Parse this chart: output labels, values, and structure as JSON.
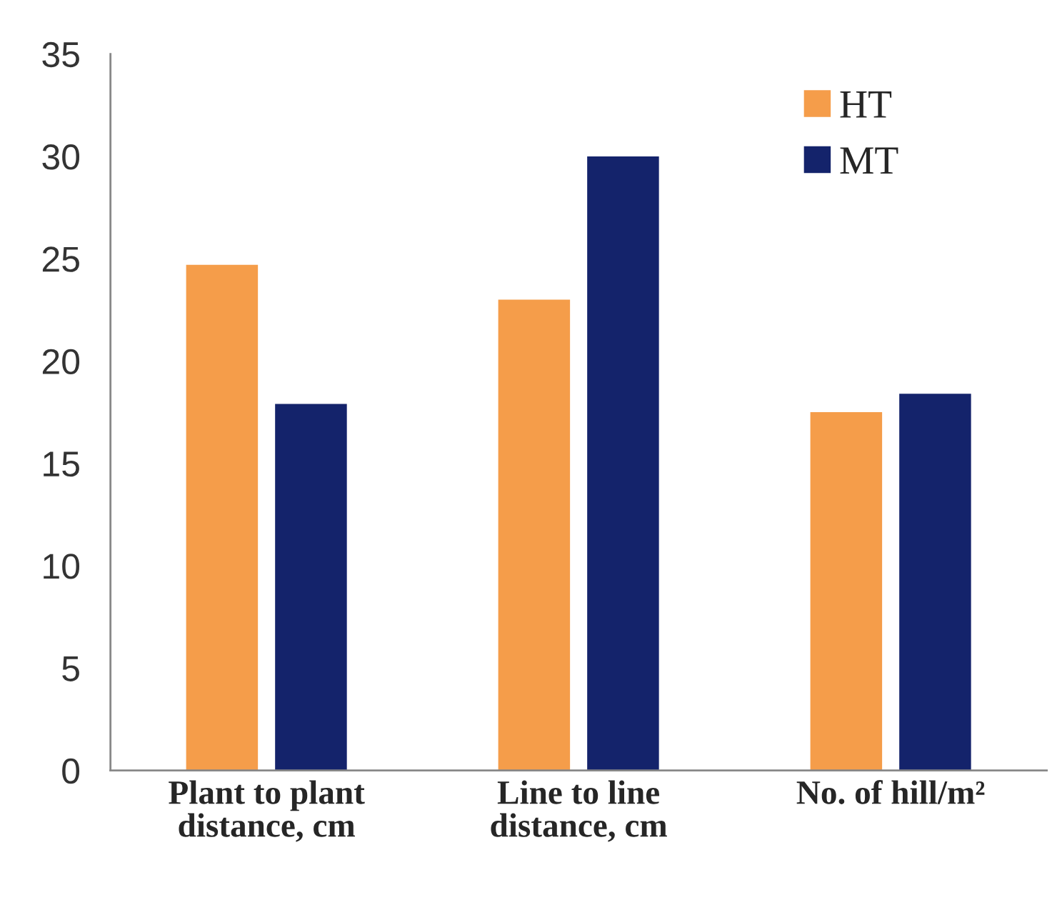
{
  "chart_data": {
    "type": "bar",
    "categories": [
      "Plant to plant distance, cm",
      "Line to line distance, cm",
      "No. of hill/m²"
    ],
    "series": [
      {
        "name": "HT",
        "color": "#f59d4a",
        "values": [
          24.7,
          23.0,
          17.5
        ]
      },
      {
        "name": "MT",
        "color": "#14236b",
        "values": [
          17.9,
          30.0,
          18.4
        ]
      }
    ],
    "ylim": [
      0,
      35
    ],
    "yticks": [
      0,
      5,
      10,
      15,
      20,
      25,
      30,
      35
    ],
    "grid": false,
    "legend": "top right"
  }
}
